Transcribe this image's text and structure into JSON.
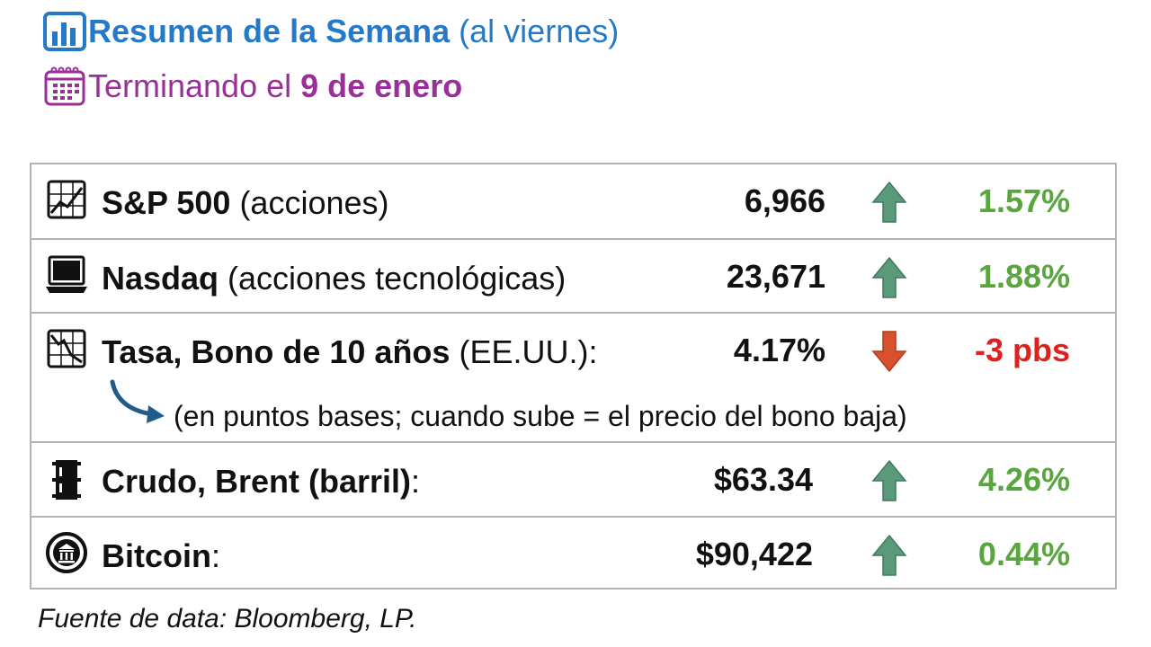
{
  "header": {
    "title_bold": "Resumen de la Semana",
    "title_rest": "(al viernes)",
    "subtitle_prefix": "Terminando el",
    "subtitle_bold": "9 de enero",
    "colors": {
      "title": "#2479c8",
      "subtitle": "#9b2f99"
    }
  },
  "rows": [
    {
      "icon": "line-chart-icon",
      "name_bold": "S&P 500",
      "name_rest": " (acciones)",
      "value": "6,966",
      "direction": "up",
      "change": "1.57%"
    },
    {
      "icon": "laptop-icon",
      "name_bold": "Nasdaq",
      "name_rest": " (acciones tecnológicas)",
      "value": "23,671",
      "direction": "up",
      "change": "1.88%"
    },
    {
      "icon": "falling-chart-icon",
      "name_bold": "Tasa, Bono de 10 años",
      "name_rest": " (EE.UU.):",
      "value": "4.17%",
      "direction": "down",
      "change": "-3 pbs",
      "note": "(en puntos bases; cuando sube = el precio del bono baja)"
    },
    {
      "icon": "oil-barrel-icon",
      "name_bold": "Crudo, Brent (barril)",
      "name_rest": ":",
      "value": "$63.34",
      "direction": "up",
      "change": "4.26%"
    },
    {
      "icon": "bitcoin-coin-icon",
      "name_bold": "Bitcoin",
      "name_rest": ":",
      "value": "$90,422",
      "direction": "up",
      "change": "0.44%"
    }
  ],
  "colors": {
    "up_arrow": "#5a9a7a",
    "down_arrow": "#d9502e",
    "positive": "#5aa63e",
    "negative": "#e0201c"
  },
  "source": "Fuente de data: Bloomberg, LP."
}
